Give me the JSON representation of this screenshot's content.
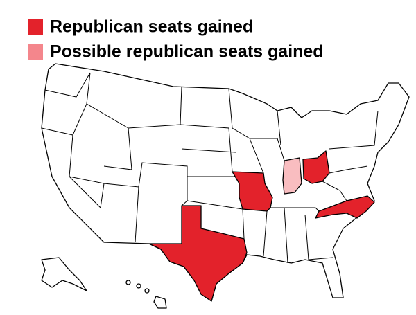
{
  "legend": {
    "items": [
      {
        "label": "Republican seats gained",
        "color": "#e3222b"
      },
      {
        "label": "Possible republican seats gained",
        "color": "#f4868c"
      }
    ]
  }
}
